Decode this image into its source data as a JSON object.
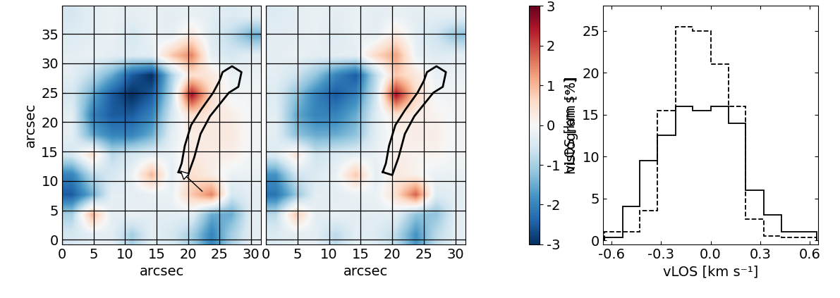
{
  "chart_data": [
    {
      "type": "heatmap",
      "xlabel": "arcsec",
      "ylabel": "arcsec",
      "xlim": [
        0,
        31.6
      ],
      "ylim": [
        -0.8,
        39.8
      ],
      "xticks": [
        0,
        5,
        10,
        15,
        20,
        25,
        30
      ],
      "yticks": [
        0,
        5,
        10,
        15,
        20,
        25,
        30,
        35
      ],
      "grid": true,
      "tick_labels": true,
      "cells": [
        [
          -0.5,
          -0.3,
          -0.2,
          -0.3,
          -0.2,
          -0.3,
          -0.2,
          -0.3,
          -0.4,
          -0.3
        ],
        [
          -0.4,
          -0.3,
          -0.2,
          -0.5,
          -0.2,
          -0.3,
          0.3,
          -0.4,
          -0.8,
          -1.5
        ],
        [
          -0.3,
          -0.2,
          -0.3,
          -0.4,
          -0.3,
          0.8,
          1.5,
          -0.3,
          -0.5,
          -0.3
        ],
        [
          -0.3,
          -0.8,
          -1.5,
          -2.5,
          -3.0,
          -1.0,
          0.5,
          0.3,
          -0.2,
          -0.2
        ],
        [
          -0.5,
          -1.5,
          -2.5,
          -3.0,
          -2.5,
          -0.8,
          2.5,
          0.5,
          -0.1,
          -0.1
        ],
        [
          -0.3,
          -2.0,
          -2.5,
          -2.5,
          -2.0,
          -0.5,
          0.5,
          0.3,
          0.2,
          -0.1
        ],
        [
          -0.3,
          -1.5,
          -2.0,
          -2.0,
          -1.5,
          -0.3,
          0.2,
          0.3,
          0.3,
          -0.1
        ],
        [
          -0.5,
          0.5,
          -0.8,
          -0.5,
          -0.3,
          -0.2,
          0.3,
          0.2,
          0.2,
          -0.1
        ],
        [
          -2.0,
          -0.8,
          -0.5,
          -0.2,
          1.0,
          -0.3,
          0.5,
          0.2,
          -0.2,
          -0.2
        ],
        [
          -2.5,
          -1.5,
          -0.3,
          -0.3,
          -0.2,
          -0.2,
          0.8,
          1.5,
          -0.5,
          -0.3
        ],
        [
          -1.0,
          1.0,
          -0.3,
          -0.2,
          -0.3,
          -0.3,
          -0.3,
          -1.5,
          -1.5,
          -0.3
        ],
        [
          -0.5,
          -0.3,
          -0.3,
          -1.0,
          -0.3,
          -0.5,
          -1.0,
          -2.0,
          -1.0,
          -0.3
        ]
      ],
      "contour": {
        "x": [
          18.5,
          20,
          21,
          22,
          23.5,
          25,
          26.5,
          28,
          28.5,
          27,
          25.5,
          25,
          24,
          22,
          20.5,
          19.5,
          19,
          18.5
        ],
        "y": [
          11.5,
          11,
          14,
          18,
          21,
          23,
          25,
          26,
          28.5,
          29.5,
          28.5,
          27,
          25,
          22,
          19.5,
          16,
          13,
          11.5
        ]
      },
      "arrow": {
        "x": [
          22.5,
          18.5
        ],
        "y": [
          8,
          12
        ]
      }
    },
    {
      "type": "heatmap",
      "xlabel": "arcsec",
      "xlim": [
        0,
        31.6
      ],
      "ylim": [
        -0.8,
        39.8
      ],
      "xticks": [
        0,
        5,
        10,
        15,
        20,
        25,
        30
      ],
      "yticks": [
        0,
        5,
        10,
        15,
        20,
        25,
        30,
        35
      ],
      "grid": true,
      "tick_labels": "x",
      "cells": [
        [
          -0.4,
          -0.3,
          -0.2,
          -0.3,
          -0.2,
          -0.3,
          -0.2,
          -0.3,
          -0.3,
          -0.3
        ],
        [
          -0.3,
          -0.3,
          -0.2,
          -0.4,
          -0.2,
          -0.3,
          0.3,
          -0.3,
          -0.6,
          -1.2
        ],
        [
          -0.3,
          -0.2,
          -0.3,
          -0.3,
          -0.3,
          0.6,
          1.2,
          -0.2,
          -0.4,
          -0.3
        ],
        [
          -0.3,
          -0.6,
          -1.2,
          -2.0,
          -2.5,
          -0.8,
          0.8,
          0.3,
          -0.2,
          -0.2
        ],
        [
          -0.4,
          -1.2,
          -2.0,
          -2.5,
          -2.0,
          -0.6,
          2.5,
          0.6,
          -0.1,
          -0.1
        ],
        [
          -0.3,
          -1.5,
          -2.0,
          -2.0,
          -1.5,
          -0.4,
          0.4,
          0.2,
          0.1,
          -0.1
        ],
        [
          -0.3,
          -1.2,
          -1.5,
          -1.5,
          -1.2,
          -0.3,
          0.1,
          0.2,
          0.2,
          -0.1
        ],
        [
          -0.4,
          0.4,
          -0.6,
          -0.4,
          -0.3,
          -0.2,
          0.2,
          0.1,
          0.1,
          -0.1
        ],
        [
          -1.8,
          -0.6,
          -0.4,
          -0.2,
          0.8,
          -0.3,
          0.3,
          0.1,
          -0.2,
          -0.2
        ],
        [
          -2.2,
          -1.2,
          -0.3,
          -0.3,
          -0.2,
          -0.2,
          0.5,
          1.8,
          -0.4,
          -0.3
        ],
        [
          -0.8,
          0.8,
          -0.3,
          -0.2,
          -0.3,
          -0.3,
          -0.3,
          -1.2,
          -1.2,
          -0.3
        ],
        [
          -0.4,
          -0.3,
          -0.3,
          -0.8,
          -0.3,
          -0.4,
          -0.8,
          -1.8,
          -0.8,
          -0.3
        ]
      ],
      "contour": {
        "x": [
          18.5,
          20,
          21,
          22,
          23.5,
          25,
          26.5,
          28,
          28.5,
          27,
          25.5,
          25,
          24,
          22,
          20.5,
          19.5,
          19,
          18.5
        ],
        "y": [
          11.5,
          11,
          14,
          18,
          21,
          23,
          25,
          26,
          28.5,
          29.5,
          28.5,
          27,
          25,
          22,
          19.5,
          16,
          13,
          11.5
        ]
      },
      "colorbar": {
        "range": [
          -3,
          3
        ],
        "ticks": [
          -3,
          -2,
          -1,
          0,
          1,
          2,
          3
        ],
        "label": "vLOS [km s⁻¹]"
      }
    },
    {
      "type": "histogram",
      "xlabel": "vLOS [km s⁻¹]",
      "ylabel": "histogram [%]",
      "xlim": [
        -0.65,
        0.65
      ],
      "ylim": [
        -0.5,
        28
      ],
      "xticks": [
        -0.6,
        -0.3,
        {
          "value": 0,
          "label": "0.0"
        },
        0.3,
        0.6
      ],
      "yticks": [
        0,
        5,
        10,
        15,
        20,
        25
      ],
      "grid": false,
      "bins": [
        -0.64,
        -0.53,
        -0.43,
        -0.32,
        -0.21,
        -0.11,
        0.0,
        0.11,
        0.21,
        0.32,
        0.43,
        0.53,
        0.64
      ],
      "series": [
        {
          "color": "black",
          "line_style": "solid",
          "values": [
            0.3,
            4,
            9.5,
            12.5,
            16,
            15.5,
            16,
            14,
            6,
            3,
            1,
            1
          ]
        },
        {
          "color": "black",
          "line_style": "dashed",
          "values": [
            1,
            1,
            3.5,
            15.5,
            25.5,
            25,
            21,
            16,
            2.5,
            0.5,
            0.3,
            0.3
          ]
        }
      ]
    }
  ]
}
